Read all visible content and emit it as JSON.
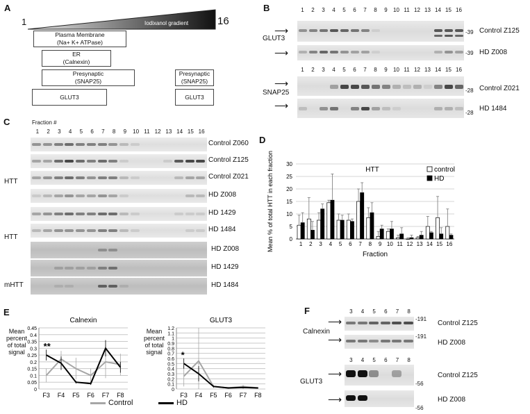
{
  "panelA": {
    "letter": "A",
    "start": "1",
    "end": "16",
    "gradient_label": "Iodixanol gradient",
    "boxes": [
      {
        "line1": "Plasma Membrane",
        "line2": "(Na+ K+ ATPase)"
      },
      {
        "line1": "ER",
        "line2": "(Calnexin)"
      },
      {
        "line1": "Presynaptic",
        "line2": "(SNAP25)"
      },
      {
        "line1": "GLUT3",
        "line2": ""
      },
      {
        "line1": "Presynaptic",
        "line2": "(SNAP25)"
      },
      {
        "line1": "GLUT3",
        "line2": ""
      }
    ]
  },
  "panelB": {
    "letter": "B",
    "lanes": [
      "1",
      "2",
      "3",
      "4",
      "5",
      "6",
      "7",
      "8",
      "9",
      "10",
      "11",
      "12",
      "13",
      "14",
      "15",
      "16"
    ],
    "glut3_label": "GLUT3",
    "snap25_label": "SNAP25",
    "rows": [
      {
        "mw": "-39",
        "label": "Control Z125"
      },
      {
        "mw": "-39",
        "label": "HD Z008"
      },
      {
        "mw": "-28",
        "label": "Control Z021"
      },
      {
        "mw": "-28",
        "label": "HD 1484"
      }
    ]
  },
  "panelC": {
    "letter": "C",
    "fraction_label": "Fraction #",
    "lanes": [
      "1",
      "2",
      "3",
      "4",
      "5",
      "6",
      "7",
      "8",
      "9",
      "10",
      "11",
      "12",
      "13",
      "14",
      "15",
      "16"
    ],
    "group_labels": [
      "HTT",
      "HTT",
      "mHTT"
    ],
    "rows": [
      "Control Z060",
      "Control Z125",
      "Control Z021",
      "HD Z008",
      "HD 1429",
      "HD 1484",
      "HD Z008",
      "HD 1429",
      "HD 1484"
    ]
  },
  "panelD": {
    "letter": "D",
    "chart_data": {
      "type": "bar",
      "title": "HTT",
      "xlabel": "Fraction",
      "ylabel": "Mean % of total HTT in each fraction",
      "ylim": [
        0,
        30
      ],
      "yticks": [
        "0",
        "5",
        "10",
        "15",
        "20",
        "25",
        "30"
      ],
      "categories": [
        "1",
        "2",
        "3",
        "4",
        "5",
        "6",
        "7",
        "8",
        "9",
        "10",
        "11",
        "12",
        "13",
        "14",
        "15",
        "16"
      ],
      "series": [
        {
          "name": "control",
          "color": "#ffffff",
          "values": [
            5.5,
            8,
            7.5,
            14.5,
            7.5,
            7.5,
            15,
            8.5,
            1,
            3,
            0.5,
            0,
            0.5,
            5,
            8.5,
            5
          ],
          "errors": [
            4,
            8.5,
            3,
            1,
            2.5,
            2.5,
            5,
            4,
            2,
            1,
            1,
            0.5,
            0.5,
            4,
            8.5,
            7
          ]
        },
        {
          "name": "HD",
          "color": "#000000",
          "values": [
            6.5,
            3.5,
            12,
            15.5,
            7.5,
            7,
            18.5,
            10.5,
            4,
            4,
            2,
            0.5,
            1.5,
            2.5,
            2,
            1.5
          ],
          "errors": [
            4,
            3.5,
            2,
            10.5,
            2,
            1,
            4,
            4,
            1.5,
            3,
            2.5,
            1,
            1.5,
            0.5,
            2.5,
            0.5
          ]
        }
      ],
      "legend_placement": "top-right"
    }
  },
  "panelE": {
    "letter": "E",
    "legend": [
      {
        "name": "Control",
        "color": "#a6a6a6"
      },
      {
        "name": "HD",
        "color": "#000000"
      }
    ],
    "chart_data": [
      {
        "type": "line",
        "title": "Calnexin",
        "ylabel": "Mean percent of total signal",
        "categories": [
          "F3",
          "F4",
          "F5",
          "F6",
          "F7",
          "F8"
        ],
        "ylim": [
          0,
          0.45
        ],
        "yticks": [
          "0",
          "0.05",
          "0.1",
          "0.15",
          "0.2",
          "0.25",
          "0.3",
          "0.35",
          "0.4",
          "0.45"
        ],
        "annotation": "**",
        "series": [
          {
            "name": "Control",
            "color": "#a6a6a6",
            "values": [
              0.1,
              0.22,
              0.15,
              0.1,
              0.2,
              0.18
            ],
            "errors": [
              0.05,
              0.06,
              0.08,
              0.05,
              0.12,
              0.08
            ]
          },
          {
            "name": "HD",
            "color": "#000000",
            "values": [
              0.25,
              0.19,
              0.05,
              0.04,
              0.3,
              0.16
            ],
            "errors": [
              0.04,
              0.05,
              0.01,
              0.01,
              0.06,
              0.04
            ]
          }
        ]
      },
      {
        "type": "line",
        "title": "GLUT3",
        "ylabel": "Mean percent of total signal",
        "categories": [
          "F3",
          "F4",
          "F5",
          "F6",
          "F7",
          "F8"
        ],
        "ylim": [
          0,
          1.2
        ],
        "yticks": [
          "0",
          "0.1",
          "0.2",
          "0.3",
          "0.4",
          "0.5",
          "0.6",
          "0.7",
          "0.8",
          "0.9",
          "1",
          "1.1",
          "1.2"
        ],
        "annotation": "*",
        "series": [
          {
            "name": "Control",
            "color": "#a6a6a6",
            "values": [
              0.25,
              0.55,
              0.05,
              0.02,
              0.05,
              0.02
            ],
            "errors": [
              0.2,
              0.65,
              0.03,
              0.02,
              0.03,
              0.02
            ]
          },
          {
            "name": "HD",
            "color": "#000000",
            "values": [
              0.5,
              0.3,
              0.05,
              0.02,
              0.03,
              0.02
            ],
            "errors": [
              0.1,
              0.15,
              0.02,
              0.01,
              0.02,
              0.01
            ]
          }
        ]
      }
    ]
  },
  "panelF": {
    "letter": "F",
    "lanes": [
      "3",
      "4",
      "5",
      "6",
      "7",
      "8"
    ],
    "calnexin_label": "Calnexin",
    "glut3_label": "GLUT3",
    "rows": [
      {
        "mw": "-191",
        "label": "Control Z125"
      },
      {
        "mw": "-191",
        "label": "HD Z008"
      },
      {
        "mw": "-56",
        "label": "Control Z125"
      },
      {
        "mw": "-56",
        "label": "HD Z008"
      }
    ]
  }
}
